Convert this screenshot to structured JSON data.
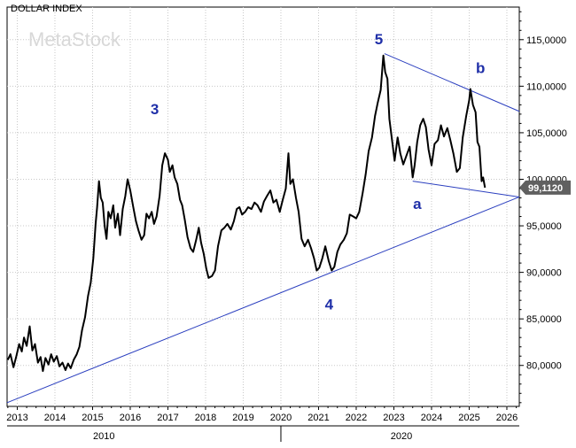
{
  "chart_data": {
    "type": "line",
    "title": "DOLLAR INDEX",
    "watermark": "MetaStock",
    "x_tick_labels": [
      "2013",
      "2014",
      "2015",
      "2016",
      "2017",
      "2018",
      "2019",
      "2020",
      "2021",
      "2022",
      "2023",
      "2024",
      "2025",
      "2026"
    ],
    "decade_labels": [
      {
        "label": "2010",
        "x": 2015.3
      },
      {
        "label": "2020",
        "x": 2023.2
      }
    ],
    "y_tick_values": [
      80,
      85,
      90,
      95,
      100,
      105,
      110,
      115
    ],
    "y_tick_labels": [
      "80,0000",
      "85,0000",
      "90,0000",
      "95,0000",
      "100,0000",
      "105,0000",
      "110,0000",
      "115,0000"
    ],
    "xlim": [
      2012.73,
      2026.33
    ],
    "ylim": [
      75.6,
      118.5
    ],
    "last_value_label": "99,1120",
    "last_value": 99.112,
    "series": [
      {
        "color": "#000000",
        "points": [
          [
            2012.75,
            80.6
          ],
          [
            2012.82,
            81.2
          ],
          [
            2012.9,
            79.8
          ],
          [
            2012.97,
            80.9
          ],
          [
            2013.05,
            82.3
          ],
          [
            2013.12,
            81.5
          ],
          [
            2013.18,
            83.0
          ],
          [
            2013.25,
            82.1
          ],
          [
            2013.33,
            84.2
          ],
          [
            2013.4,
            81.6
          ],
          [
            2013.47,
            82.3
          ],
          [
            2013.55,
            80.3
          ],
          [
            2013.62,
            80.9
          ],
          [
            2013.68,
            79.4
          ],
          [
            2013.75,
            80.8
          ],
          [
            2013.83,
            80.1
          ],
          [
            2013.9,
            81.2
          ],
          [
            2013.97,
            80.4
          ],
          [
            2014.05,
            81.0
          ],
          [
            2014.12,
            79.9
          ],
          [
            2014.2,
            80.3
          ],
          [
            2014.28,
            79.5
          ],
          [
            2014.35,
            80.2
          ],
          [
            2014.42,
            79.7
          ],
          [
            2014.5,
            80.6
          ],
          [
            2014.58,
            81.2
          ],
          [
            2014.65,
            82.0
          ],
          [
            2014.72,
            83.8
          ],
          [
            2014.8,
            85.2
          ],
          [
            2014.88,
            87.5
          ],
          [
            2014.95,
            88.9
          ],
          [
            2015.02,
            91.5
          ],
          [
            2015.08,
            95.2
          ],
          [
            2015.12,
            97.0
          ],
          [
            2015.17,
            99.8
          ],
          [
            2015.22,
            98.0
          ],
          [
            2015.27,
            97.5
          ],
          [
            2015.32,
            95.0
          ],
          [
            2015.37,
            93.6
          ],
          [
            2015.42,
            96.5
          ],
          [
            2015.48,
            95.8
          ],
          [
            2015.55,
            97.2
          ],
          [
            2015.6,
            94.8
          ],
          [
            2015.67,
            96.3
          ],
          [
            2015.73,
            94.0
          ],
          [
            2015.8,
            96.8
          ],
          [
            2015.87,
            98.2
          ],
          [
            2015.93,
            100.0
          ],
          [
            2016.0,
            98.8
          ],
          [
            2016.08,
            97.0
          ],
          [
            2016.15,
            95.5
          ],
          [
            2016.22,
            94.5
          ],
          [
            2016.3,
            93.5
          ],
          [
            2016.37,
            94.0
          ],
          [
            2016.43,
            96.3
          ],
          [
            2016.5,
            95.8
          ],
          [
            2016.57,
            96.5
          ],
          [
            2016.63,
            95.2
          ],
          [
            2016.7,
            96.0
          ],
          [
            2016.78,
            98.2
          ],
          [
            2016.85,
            101.5
          ],
          [
            2016.92,
            102.8
          ],
          [
            2017.0,
            102.1
          ],
          [
            2017.05,
            100.8
          ],
          [
            2017.12,
            101.5
          ],
          [
            2017.18,
            100.2
          ],
          [
            2017.25,
            99.5
          ],
          [
            2017.32,
            97.8
          ],
          [
            2017.38,
            97.2
          ],
          [
            2017.45,
            95.6
          ],
          [
            2017.52,
            93.8
          ],
          [
            2017.6,
            92.6
          ],
          [
            2017.67,
            92.2
          ],
          [
            2017.75,
            93.5
          ],
          [
            2017.82,
            94.8
          ],
          [
            2017.88,
            93.2
          ],
          [
            2017.95,
            92.0
          ],
          [
            2018.02,
            90.4
          ],
          [
            2018.08,
            89.4
          ],
          [
            2018.17,
            89.6
          ],
          [
            2018.25,
            90.2
          ],
          [
            2018.33,
            92.8
          ],
          [
            2018.42,
            94.5
          ],
          [
            2018.5,
            94.8
          ],
          [
            2018.58,
            95.2
          ],
          [
            2018.67,
            94.6
          ],
          [
            2018.75,
            95.5
          ],
          [
            2018.83,
            96.8
          ],
          [
            2018.9,
            97.0
          ],
          [
            2018.97,
            96.2
          ],
          [
            2019.05,
            96.5
          ],
          [
            2019.13,
            97.0
          ],
          [
            2019.22,
            96.8
          ],
          [
            2019.3,
            97.5
          ],
          [
            2019.38,
            97.2
          ],
          [
            2019.47,
            96.5
          ],
          [
            2019.55,
            97.6
          ],
          [
            2019.63,
            98.2
          ],
          [
            2019.72,
            98.8
          ],
          [
            2019.8,
            97.5
          ],
          [
            2019.88,
            97.8
          ],
          [
            2019.97,
            96.5
          ],
          [
            2020.05,
            97.8
          ],
          [
            2020.13,
            99.0
          ],
          [
            2020.2,
            102.8
          ],
          [
            2020.25,
            99.5
          ],
          [
            2020.32,
            100.0
          ],
          [
            2020.4,
            98.0
          ],
          [
            2020.47,
            96.5
          ],
          [
            2020.55,
            93.6
          ],
          [
            2020.63,
            92.8
          ],
          [
            2020.72,
            93.5
          ],
          [
            2020.8,
            92.6
          ],
          [
            2020.88,
            91.5
          ],
          [
            2020.95,
            90.2
          ],
          [
            2021.02,
            90.5
          ],
          [
            2021.1,
            91.5
          ],
          [
            2021.18,
            92.8
          ],
          [
            2021.27,
            91.2
          ],
          [
            2021.35,
            90.2
          ],
          [
            2021.42,
            90.6
          ],
          [
            2021.5,
            92.2
          ],
          [
            2021.58,
            93.0
          ],
          [
            2021.67,
            93.5
          ],
          [
            2021.75,
            94.2
          ],
          [
            2021.83,
            96.2
          ],
          [
            2021.92,
            96.0
          ],
          [
            2022.0,
            95.8
          ],
          [
            2022.08,
            96.5
          ],
          [
            2022.17,
            98.5
          ],
          [
            2022.25,
            100.5
          ],
          [
            2022.33,
            103.0
          ],
          [
            2022.42,
            104.5
          ],
          [
            2022.5,
            106.8
          ],
          [
            2022.57,
            108.2
          ],
          [
            2022.65,
            109.6
          ],
          [
            2022.72,
            113.3
          ],
          [
            2022.77,
            111.5
          ],
          [
            2022.83,
            110.8
          ],
          [
            2022.88,
            106.5
          ],
          [
            2022.95,
            104.2
          ],
          [
            2023.02,
            102.0
          ],
          [
            2023.1,
            104.5
          ],
          [
            2023.17,
            102.8
          ],
          [
            2023.25,
            101.6
          ],
          [
            2023.33,
            102.5
          ],
          [
            2023.42,
            103.5
          ],
          [
            2023.5,
            100.2
          ],
          [
            2023.55,
            101.5
          ],
          [
            2023.62,
            104.0
          ],
          [
            2023.7,
            105.8
          ],
          [
            2023.78,
            106.5
          ],
          [
            2023.85,
            105.6
          ],
          [
            2023.92,
            103.2
          ],
          [
            2024.0,
            101.5
          ],
          [
            2024.08,
            103.8
          ],
          [
            2024.17,
            104.2
          ],
          [
            2024.25,
            105.8
          ],
          [
            2024.33,
            104.6
          ],
          [
            2024.42,
            105.5
          ],
          [
            2024.5,
            104.2
          ],
          [
            2024.58,
            102.8
          ],
          [
            2024.67,
            100.8
          ],
          [
            2024.75,
            101.2
          ],
          [
            2024.83,
            104.5
          ],
          [
            2024.92,
            106.8
          ],
          [
            2025.0,
            108.5
          ],
          [
            2025.03,
            109.7
          ],
          [
            2025.1,
            108.0
          ],
          [
            2025.17,
            107.2
          ],
          [
            2025.22,
            104.0
          ],
          [
            2025.27,
            103.5
          ],
          [
            2025.33,
            99.8
          ],
          [
            2025.37,
            100.2
          ],
          [
            2025.42,
            99.1
          ]
        ]
      }
    ],
    "trendlines": [
      {
        "color": "#2b3fbf",
        "from": [
          2012.73,
          76.0
        ],
        "to": [
          2026.33,
          98.1
        ]
      },
      {
        "color": "#2b3fbf",
        "from": [
          2022.75,
          113.5
        ],
        "to": [
          2026.33,
          107.3
        ]
      },
      {
        "color": "#2b3fbf",
        "from": [
          2023.5,
          99.8
        ],
        "to": [
          2026.33,
          98.1
        ]
      }
    ],
    "annotations": [
      {
        "text": "5",
        "x": 2022.6,
        "y": 114.5
      },
      {
        "text": "3",
        "x": 2016.65,
        "y": 107.0
      },
      {
        "text": "b",
        "x": 2025.3,
        "y": 111.4
      },
      {
        "text": "a",
        "x": 2023.62,
        "y": 96.8
      },
      {
        "text": "4",
        "x": 2021.28,
        "y": 86.0
      }
    ]
  }
}
